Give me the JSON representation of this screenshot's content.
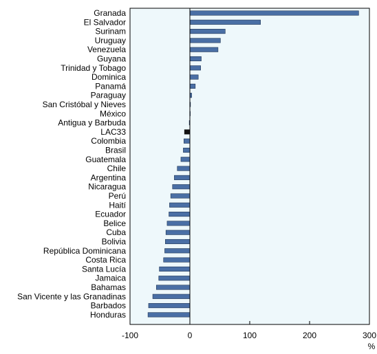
{
  "chart_data": {
    "type": "bar",
    "orientation": "horizontal",
    "categories": [
      "Granada",
      "El Salvador",
      "Surinam",
      "Uruguay",
      "Venezuela",
      "Guyana",
      "Trinidad y Tobago",
      "Dominica",
      "Panamá",
      "Paraguay",
      "San Cristóbal y Nieves",
      "México",
      "Antigua y Barbuda",
      "LAC33",
      "Colombia",
      "Brasil",
      "Guatemala",
      "Chile",
      "Argentina",
      "Nicaragua",
      "Perú",
      "Haití",
      "Ecuador",
      "Belice",
      "Cuba",
      "Bolivia",
      "República Dominicana",
      "Costa Rica",
      "Santa Lucía",
      "Jamaica",
      "Bahamas",
      "San Vicente y las Granadinas",
      "Barbados",
      "Honduras"
    ],
    "values": [
      282,
      118,
      59,
      51,
      47,
      19,
      18,
      14,
      9,
      3,
      1,
      0.5,
      -1,
      -9,
      -10,
      -11,
      -15,
      -21,
      -26,
      -29,
      -32,
      -34,
      -35,
      -38,
      -40,
      -41,
      -42,
      -44,
      -51,
      -52,
      -56,
      -62,
      -69,
      -70
    ],
    "highlight_category": "LAC33",
    "xlabel": "%",
    "ylabel": "",
    "xlim": [
      -100,
      300
    ],
    "xticks": [
      -100,
      0,
      100,
      200,
      300
    ],
    "grid": false,
    "colors": {
      "bar": "#4a6fa5",
      "bar_edge": "#1f3554",
      "highlight_bar": "#111111",
      "plot_background": "#eef8fb",
      "axis": "#000000"
    }
  }
}
